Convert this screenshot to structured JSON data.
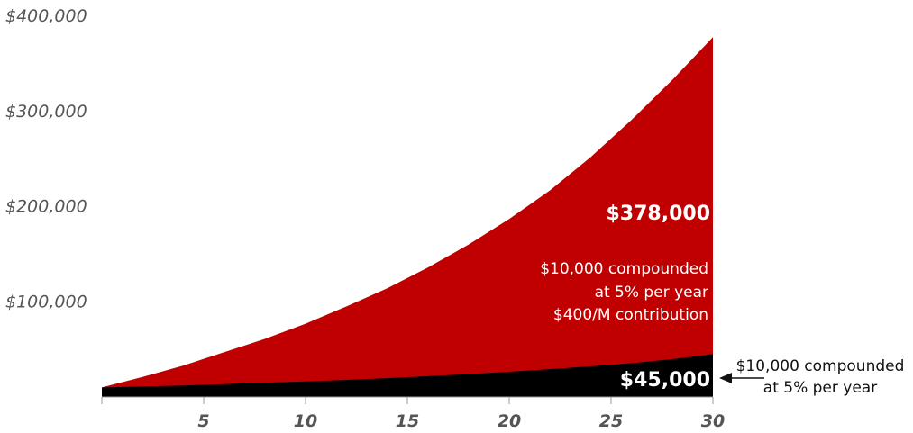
{
  "chart_data": {
    "type": "area",
    "x": [
      0,
      2,
      4,
      6,
      8,
      10,
      12,
      14,
      16,
      18,
      20,
      22,
      24,
      26,
      28,
      30
    ],
    "xticks": [
      5,
      10,
      15,
      20,
      25,
      30
    ],
    "xlim": [
      0,
      30
    ],
    "ylim": [
      0,
      400000
    ],
    "yticks": [
      100000,
      200000,
      300000,
      400000
    ],
    "ytick_labels": [
      "$100,000",
      "$200,000",
      "$300,000",
      "$400,000"
    ],
    "grid": false,
    "series": [
      {
        "values": [
          10000,
          21000,
          33000,
          47000,
          61000,
          77000,
          95000,
          114000,
          136000,
          160000,
          187000,
          217000,
          252000,
          291000,
          333000,
          378000
        ],
        "color": "#c00000"
      },
      {
        "values": [
          10000,
          11000,
          12000,
          13500,
          15000,
          16300,
          18000,
          19800,
          21800,
          24000,
          26500,
          29200,
          32200,
          35500,
          39700,
          45000
        ],
        "color": "#000000"
      }
    ],
    "annotations": {
      "red_total": "$378,000",
      "red_note": [
        "$10,000 compounded",
        "at 5% per year",
        "$400/M contribution"
      ],
      "black_total": "$45,000",
      "black_note": [
        "$10,000 compounded",
        "at 5% per year"
      ]
    }
  }
}
